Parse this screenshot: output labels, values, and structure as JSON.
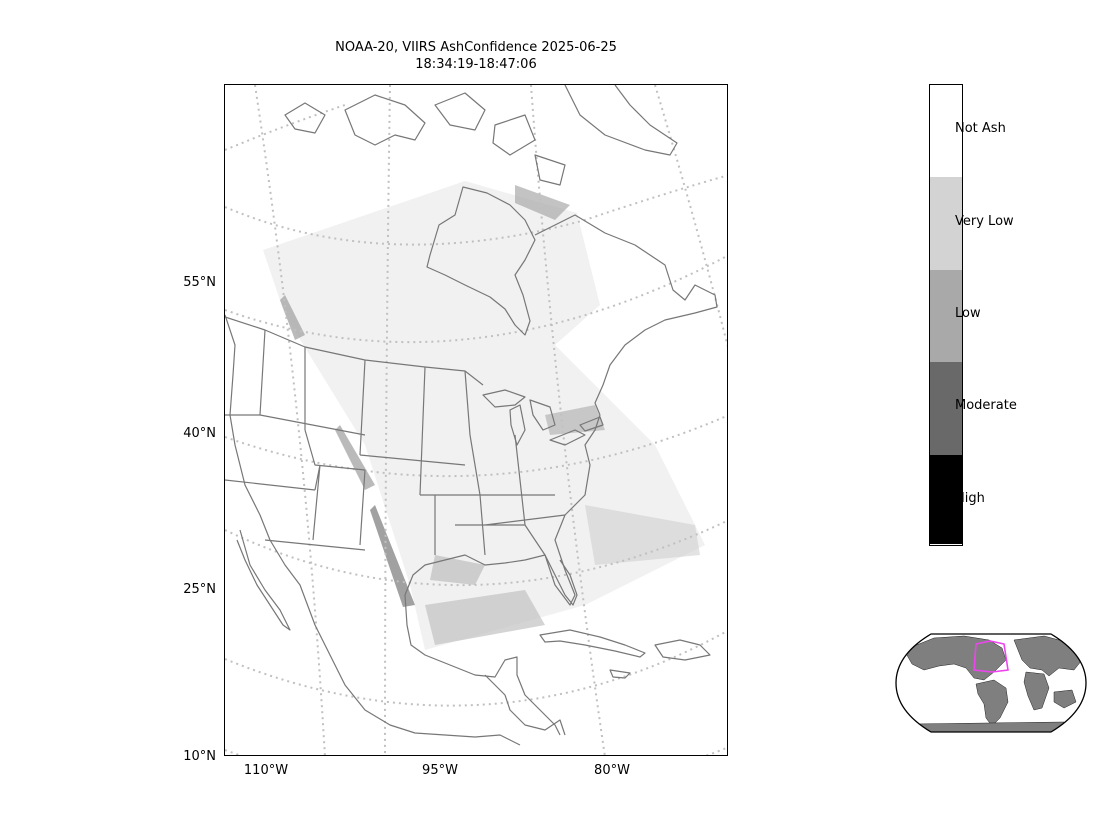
{
  "title": {
    "line1": "NOAA-20, VIIRS AshConfidence 2025-06-25",
    "line2": "18:34:19-18:47:06"
  },
  "map": {
    "lat_labels": [
      "55°N",
      "40°N",
      "25°N",
      "10°N"
    ],
    "lon_labels": [
      "110°W",
      "95°W",
      "80°W"
    ],
    "coastline_color": "#777777",
    "graticule_color": "#c0c0c0"
  },
  "colorbar": {
    "categories": [
      {
        "label": "Not Ash",
        "color": "#ffffff"
      },
      {
        "label": "Very Low",
        "color": "#d3d3d3"
      },
      {
        "label": "Low",
        "color": "#a9a9a9"
      },
      {
        "label": "Moderate",
        "color": "#696969"
      },
      {
        "label": "High",
        "color": "#000000"
      }
    ]
  },
  "inset": {
    "land_color": "#7f7f7f",
    "box_color": "#ee44ee"
  }
}
